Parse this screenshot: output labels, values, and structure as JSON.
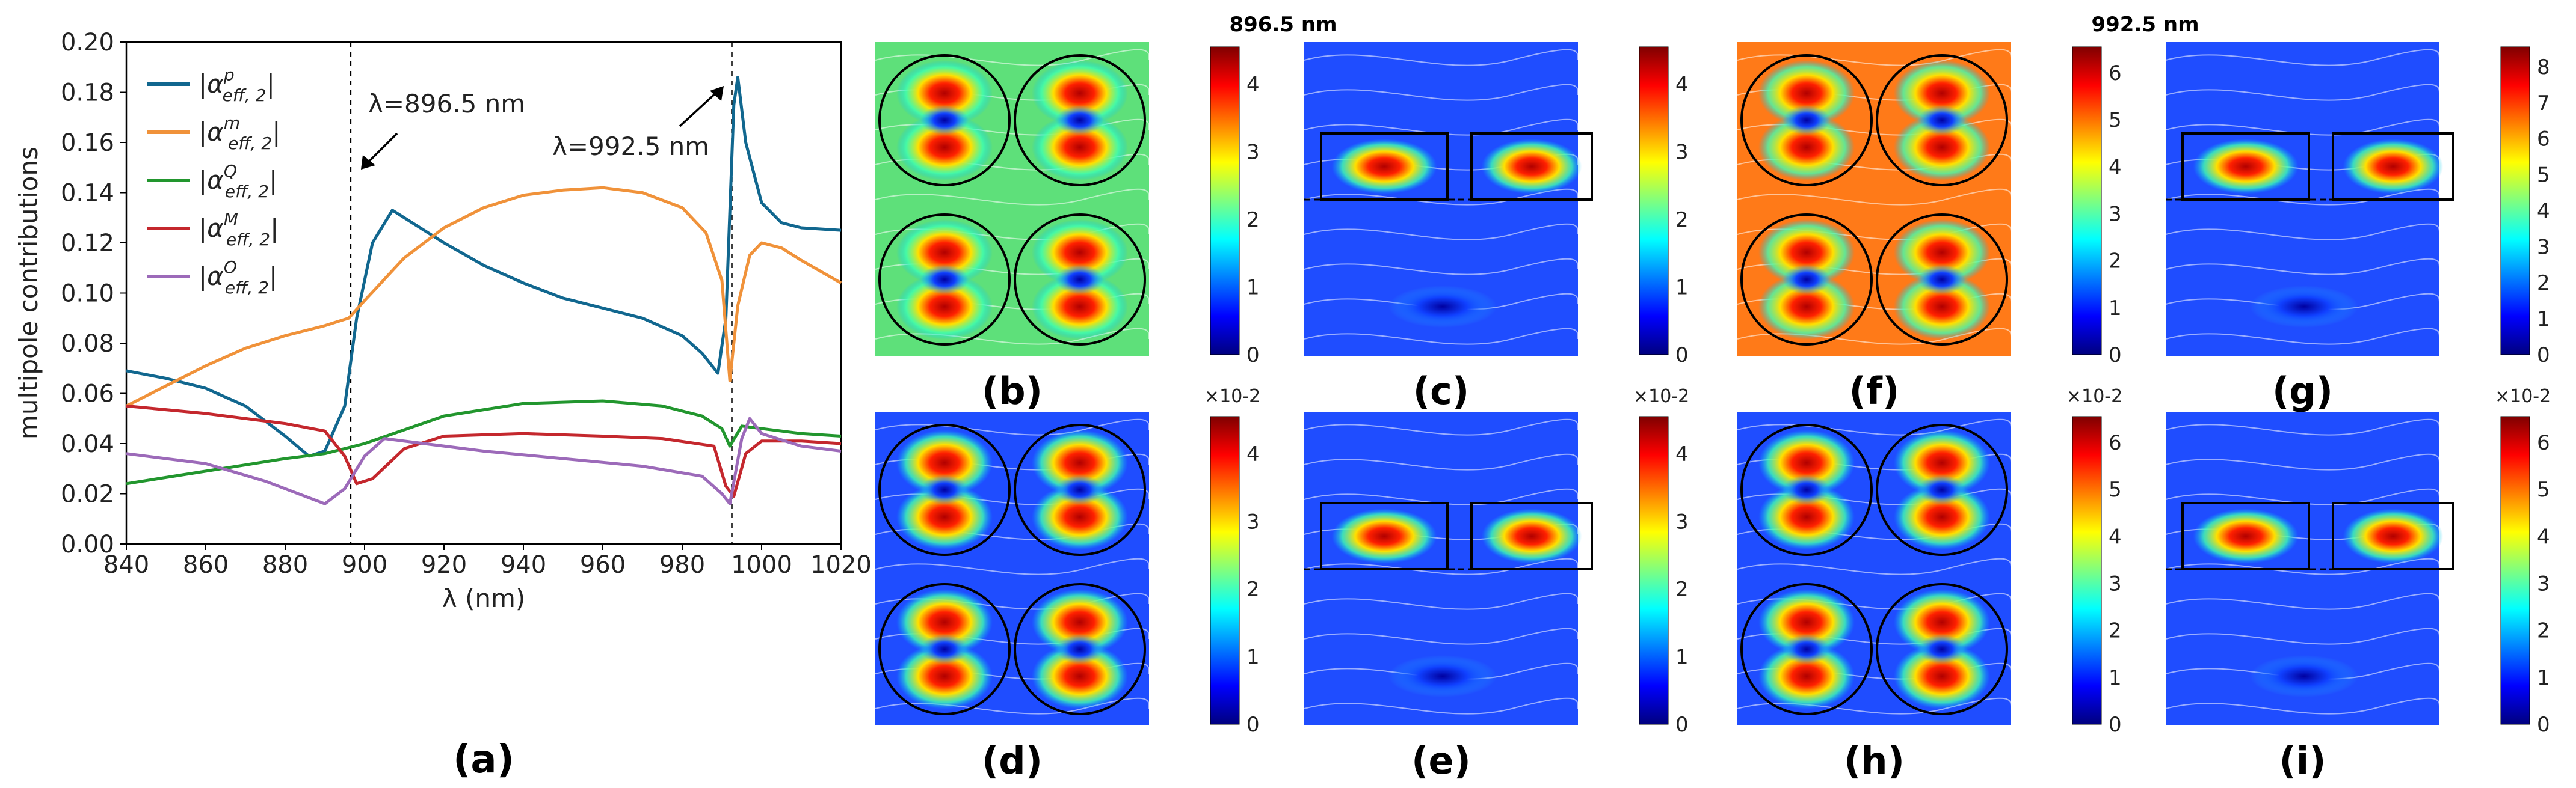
{
  "chart_data": {
    "type": "line",
    "panel_label": "(a)",
    "xlabel": "λ (nm)",
    "ylabel": "multipole contributions",
    "xlim": [
      840,
      1020
    ],
    "ylim": [
      0,
      0.2
    ],
    "xticks": [
      840,
      860,
      880,
      900,
      920,
      940,
      960,
      980,
      1000,
      1020
    ],
    "yticks": [
      0.0,
      0.02,
      0.04,
      0.06,
      0.08,
      0.1,
      0.12,
      0.14,
      0.16,
      0.18,
      0.2
    ],
    "grid": false,
    "legend_position": "top-left",
    "annotations": [
      {
        "text": "λ=896.5 nm",
        "x": 896.5
      },
      {
        "text": "λ=992.5 nm",
        "x": 992.5
      }
    ],
    "series": [
      {
        "base": "α",
        "sup": "p",
        "sub": "eff, 2",
        "color": "#11678f",
        "points": [
          [
            840,
            0.069
          ],
          [
            850,
            0.066
          ],
          [
            860,
            0.062
          ],
          [
            870,
            0.055
          ],
          [
            880,
            0.043
          ],
          [
            886,
            0.035
          ],
          [
            890,
            0.037
          ],
          [
            895,
            0.055
          ],
          [
            898,
            0.09
          ],
          [
            902,
            0.12
          ],
          [
            907,
            0.133
          ],
          [
            912,
            0.128
          ],
          [
            920,
            0.12
          ],
          [
            930,
            0.111
          ],
          [
            940,
            0.104
          ],
          [
            950,
            0.098
          ],
          [
            960,
            0.094
          ],
          [
            970,
            0.09
          ],
          [
            980,
            0.083
          ],
          [
            985,
            0.076
          ],
          [
            989,
            0.068
          ],
          [
            991,
            0.09
          ],
          [
            993,
            0.175
          ],
          [
            994,
            0.186
          ],
          [
            996,
            0.16
          ],
          [
            1000,
            0.136
          ],
          [
            1005,
            0.128
          ],
          [
            1010,
            0.126
          ],
          [
            1020,
            0.125
          ]
        ]
      },
      {
        "base": "α",
        "sup": "m",
        "sub": "eff, 2",
        "color": "#f0923a",
        "points": [
          [
            840,
            0.055
          ],
          [
            850,
            0.063
          ],
          [
            860,
            0.071
          ],
          [
            870,
            0.078
          ],
          [
            880,
            0.083
          ],
          [
            890,
            0.087
          ],
          [
            896,
            0.09
          ],
          [
            900,
            0.097
          ],
          [
            910,
            0.114
          ],
          [
            920,
            0.126
          ],
          [
            930,
            0.134
          ],
          [
            940,
            0.139
          ],
          [
            950,
            0.141
          ],
          [
            960,
            0.142
          ],
          [
            970,
            0.14
          ],
          [
            980,
            0.134
          ],
          [
            986,
            0.124
          ],
          [
            990,
            0.105
          ],
          [
            992,
            0.065
          ],
          [
            994,
            0.095
          ],
          [
            997,
            0.115
          ],
          [
            1000,
            0.12
          ],
          [
            1005,
            0.118
          ],
          [
            1010,
            0.113
          ],
          [
            1020,
            0.104
          ]
        ]
      },
      {
        "base": "α",
        "sup": "Q",
        "sub": "eff, 2",
        "color": "#22962e",
        "points": [
          [
            840,
            0.024
          ],
          [
            860,
            0.029
          ],
          [
            880,
            0.034
          ],
          [
            890,
            0.036
          ],
          [
            900,
            0.04
          ],
          [
            920,
            0.051
          ],
          [
            940,
            0.056
          ],
          [
            960,
            0.057
          ],
          [
            975,
            0.055
          ],
          [
            985,
            0.051
          ],
          [
            990,
            0.046
          ],
          [
            992,
            0.039
          ],
          [
            995,
            0.047
          ],
          [
            1000,
            0.046
          ],
          [
            1010,
            0.044
          ],
          [
            1020,
            0.043
          ]
        ]
      },
      {
        "base": "α",
        "sup": "M",
        "sub": "eff, 2",
        "color": "#c4272d",
        "points": [
          [
            840,
            0.055
          ],
          [
            860,
            0.052
          ],
          [
            880,
            0.048
          ],
          [
            890,
            0.045
          ],
          [
            895,
            0.035
          ],
          [
            898,
            0.024
          ],
          [
            902,
            0.026
          ],
          [
            910,
            0.038
          ],
          [
            920,
            0.043
          ],
          [
            940,
            0.044
          ],
          [
            960,
            0.043
          ],
          [
            975,
            0.042
          ],
          [
            988,
            0.039
          ],
          [
            991,
            0.023
          ],
          [
            993,
            0.019
          ],
          [
            996,
            0.036
          ],
          [
            1000,
            0.041
          ],
          [
            1010,
            0.041
          ],
          [
            1020,
            0.04
          ]
        ]
      },
      {
        "base": "α",
        "sup": "O",
        "sub": "eff, 2",
        "color": "#9c6ab9",
        "points": [
          [
            840,
            0.036
          ],
          [
            860,
            0.032
          ],
          [
            875,
            0.025
          ],
          [
            885,
            0.019
          ],
          [
            890,
            0.016
          ],
          [
            895,
            0.022
          ],
          [
            900,
            0.035
          ],
          [
            905,
            0.042
          ],
          [
            915,
            0.04
          ],
          [
            930,
            0.037
          ],
          [
            950,
            0.034
          ],
          [
            970,
            0.031
          ],
          [
            985,
            0.027
          ],
          [
            990,
            0.02
          ],
          [
            992,
            0.016
          ],
          [
            995,
            0.042
          ],
          [
            997,
            0.05
          ],
          [
            1000,
            0.044
          ],
          [
            1010,
            0.039
          ],
          [
            1020,
            0.037
          ]
        ]
      }
    ]
  },
  "wavelength_labels": {
    "first": "896.5 nm",
    "second": "992.5 nm"
  },
  "field_maps": [
    {
      "label": "(b)",
      "kind": "circles",
      "palette": "green",
      "scale_ticks": [
        "0",
        "1",
        "2",
        "3",
        "4"
      ],
      "multiplier": ""
    },
    {
      "label": "(c)",
      "kind": "rects",
      "palette": "blue",
      "scale_ticks": [
        "0",
        "1",
        "2",
        "3",
        "4"
      ],
      "multiplier": ""
    },
    {
      "label": "(f)",
      "kind": "circles",
      "palette": "red",
      "scale_ticks": [
        "0",
        "1",
        "2",
        "3",
        "4",
        "5",
        "6"
      ],
      "multiplier": ""
    },
    {
      "label": "(g)",
      "kind": "rects",
      "palette": "blue",
      "scale_ticks": [
        "0",
        "1",
        "2",
        "3",
        "4",
        "5",
        "6",
        "7",
        "8"
      ],
      "multiplier": ""
    },
    {
      "label": "(d)",
      "kind": "circles",
      "palette": "blue",
      "scale_ticks": [
        "0",
        "1",
        "2",
        "3",
        "4"
      ],
      "multiplier": "×10-2"
    },
    {
      "label": "(e)",
      "kind": "rects",
      "palette": "blue",
      "scale_ticks": [
        "0",
        "1",
        "2",
        "3",
        "4"
      ],
      "multiplier": "×10-2"
    },
    {
      "label": "(h)",
      "kind": "circles",
      "palette": "blue",
      "scale_ticks": [
        "0",
        "1",
        "2",
        "3",
        "4",
        "5",
        "6"
      ],
      "multiplier": "×10-2"
    },
    {
      "label": "(i)",
      "kind": "rects",
      "palette": "blue",
      "scale_ticks": [
        "0",
        "1",
        "2",
        "3",
        "4",
        "5",
        "6"
      ],
      "multiplier": "×10-2"
    }
  ]
}
